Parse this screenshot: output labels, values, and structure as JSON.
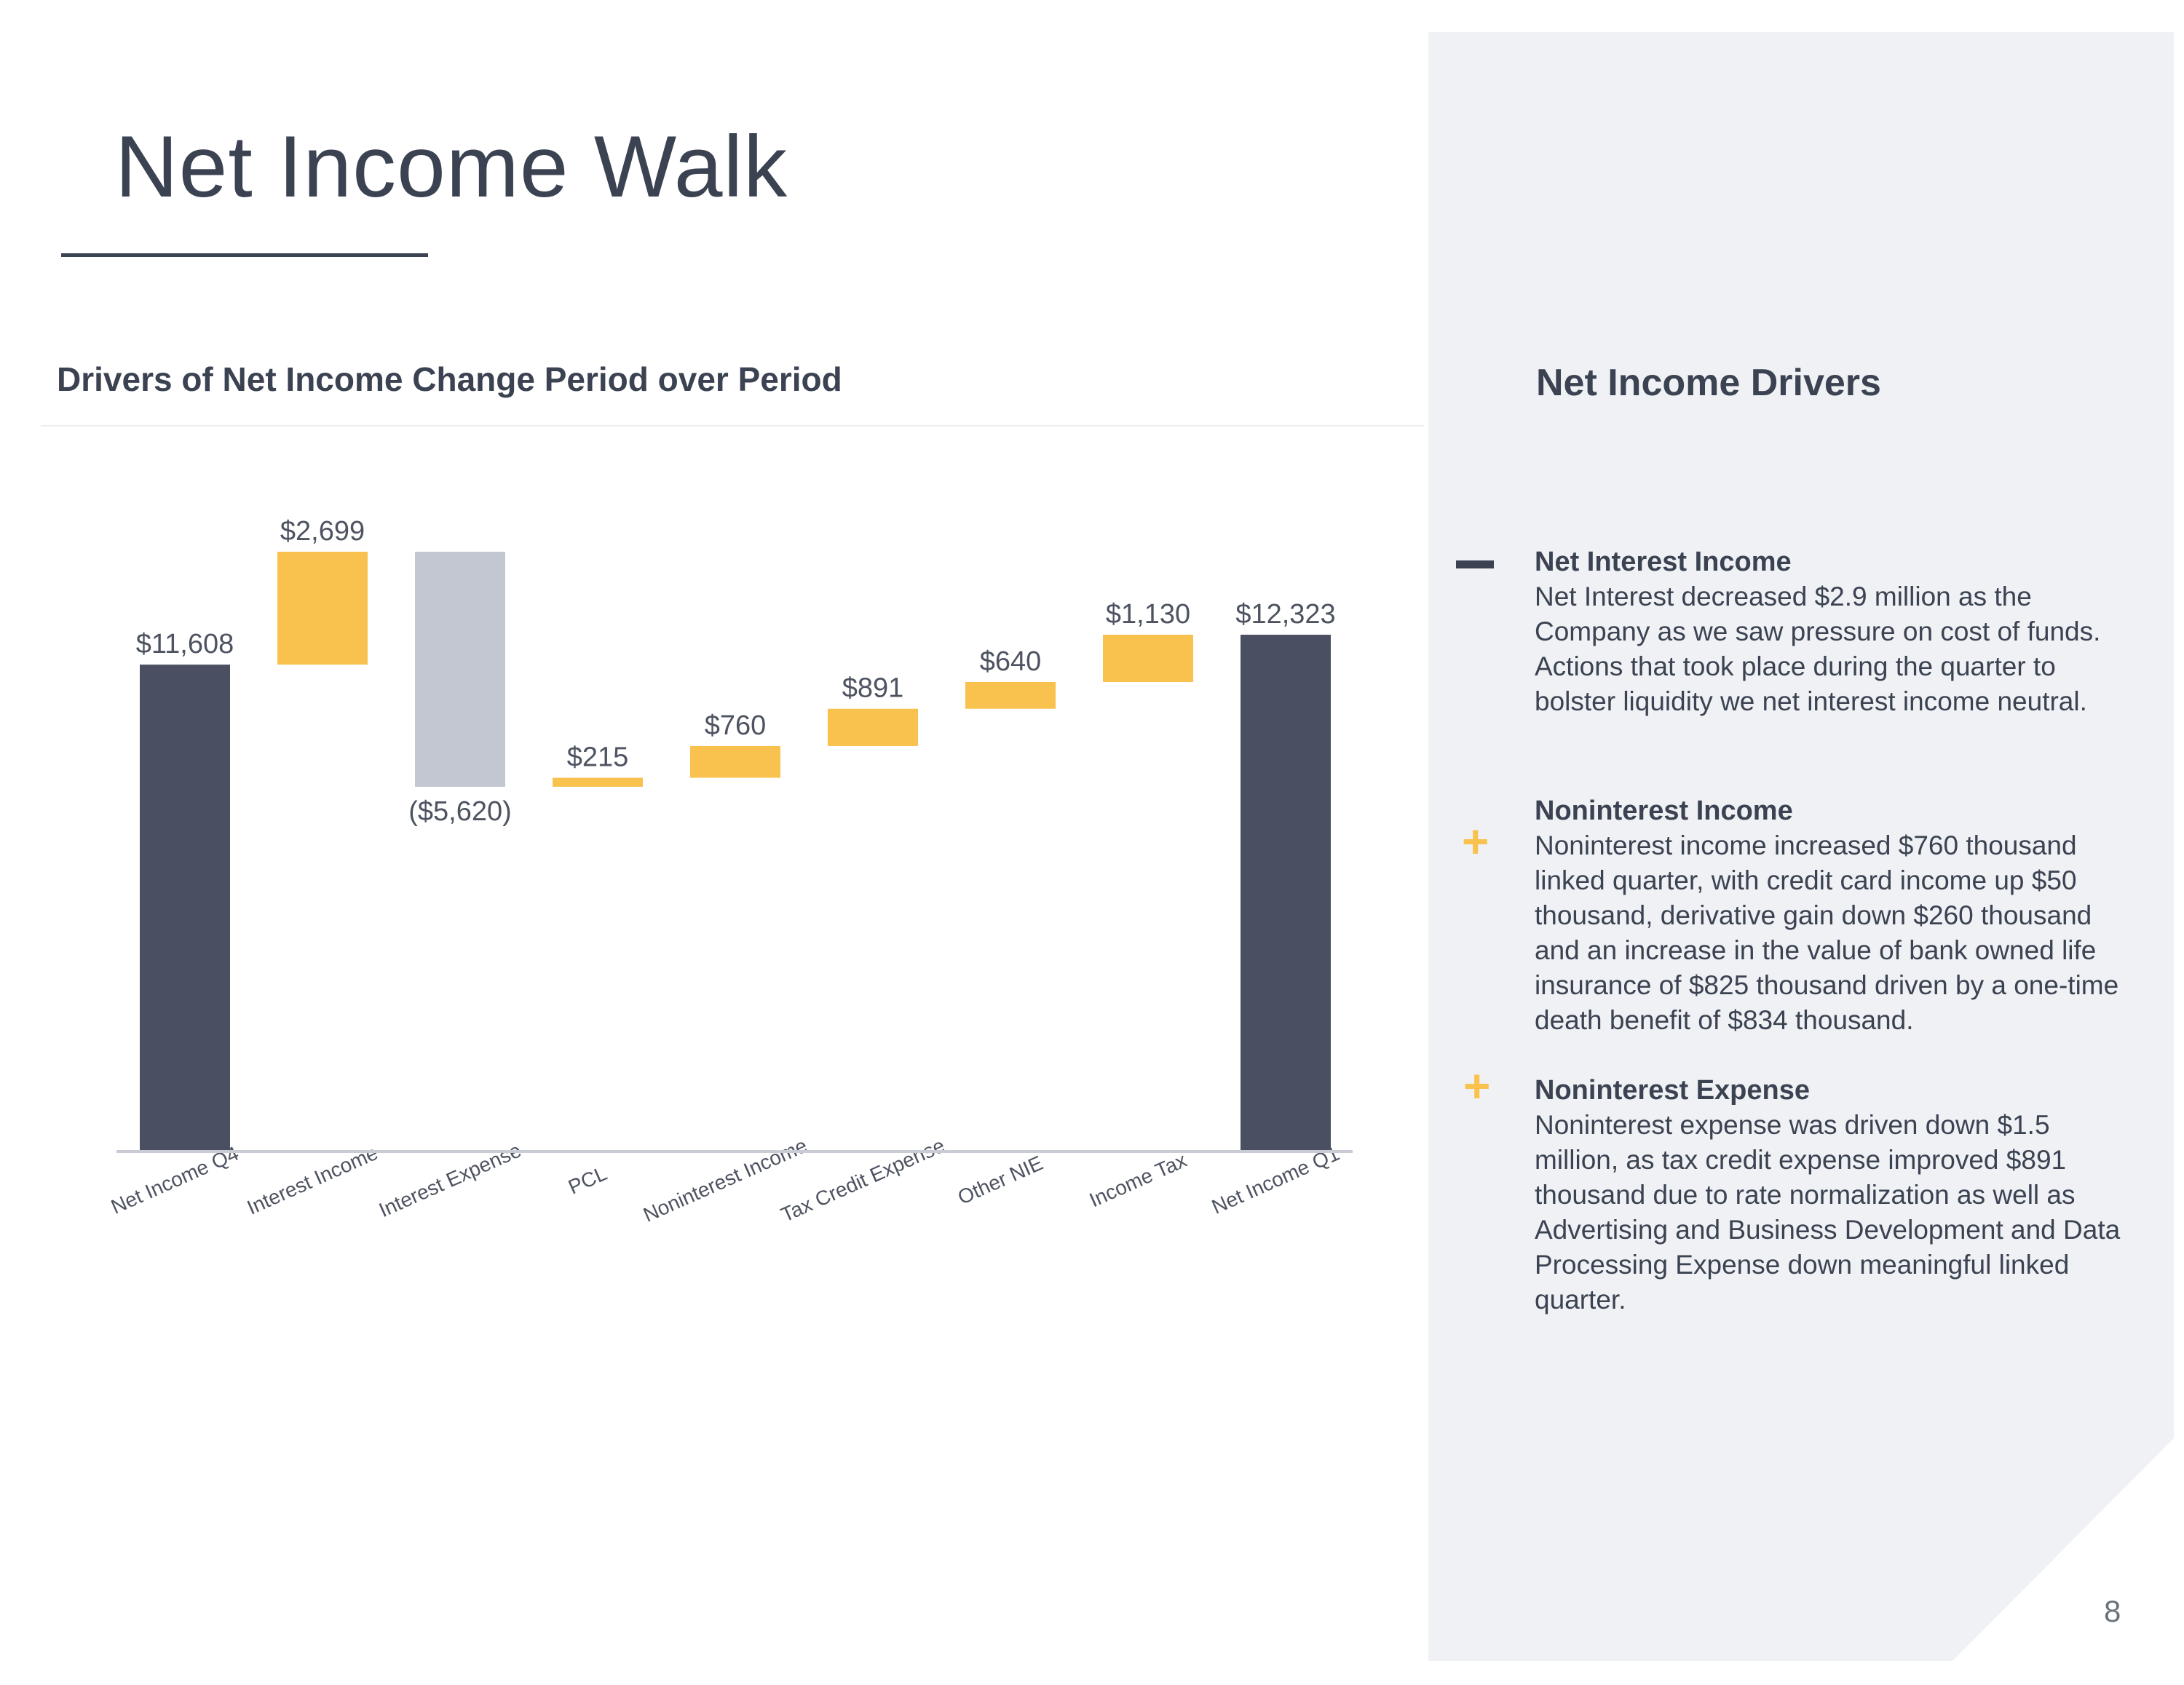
{
  "title": "Net Income Walk",
  "chart_title": "Drivers of Net Income Change Period over Period",
  "chart_data": {
    "type": "bar",
    "subtype": "waterfall",
    "categories": [
      "Net Income Q4",
      "Interest Income",
      "Interest Expense",
      "PCL",
      "Noninterest Income",
      "Tax Credit Expense",
      "Other NIE",
      "Income Tax",
      "Net Income Q1"
    ],
    "values": [
      11608,
      2699,
      -5620,
      215,
      760,
      891,
      640,
      1130,
      12323
    ],
    "bar_kinds": [
      "total",
      "delta",
      "delta",
      "delta",
      "delta",
      "delta",
      "delta",
      "delta",
      "total"
    ],
    "data_labels": [
      "$11,608",
      "$2,699",
      "($5,620)",
      "$215",
      "$760",
      "$891",
      "$640",
      "$1,130",
      "$12,323"
    ],
    "colors": {
      "total": "#4a5061",
      "increase": "#f9c14e",
      "decrease": "#c3c7d2",
      "axis": "#c9ccd4",
      "text": "#4d5360"
    },
    "ylim": [
      0,
      15000
    ]
  },
  "panel": {
    "title": "Net Income Drivers",
    "drivers": [
      {
        "sign": "minus",
        "title": "Net Interest Income",
        "lines": [
          "Net Interest decreased $2.9 million as the",
          "Company as we saw pressure on cost of funds.",
          "Actions that took place during the quarter to",
          "bolster liquidity we net interest income neutral."
        ]
      },
      {
        "sign": "plus",
        "title": "Noninterest Income",
        "lines": [
          "Noninterest income increased $760 thousand",
          "linked quarter, with credit card income up $50",
          "thousand, derivative gain down $260 thousand",
          "and an increase in the value of bank owned life",
          "insurance of $825 thousand driven by a one-time",
          "death benefit of $834 thousand."
        ]
      },
      {
        "sign": "plus",
        "title": "Noninterest Expense",
        "lines": [
          "Noninterest expense was driven down $1.5",
          "million, as tax credit expense improved $891",
          "thousand due to rate normalization as well as",
          "Advertising and Business Development and Data",
          "Processing Expense down meaningful linked",
          "quarter."
        ]
      }
    ]
  },
  "page_number": "8",
  "signs": {
    "minus": "",
    "plus": "+"
  }
}
